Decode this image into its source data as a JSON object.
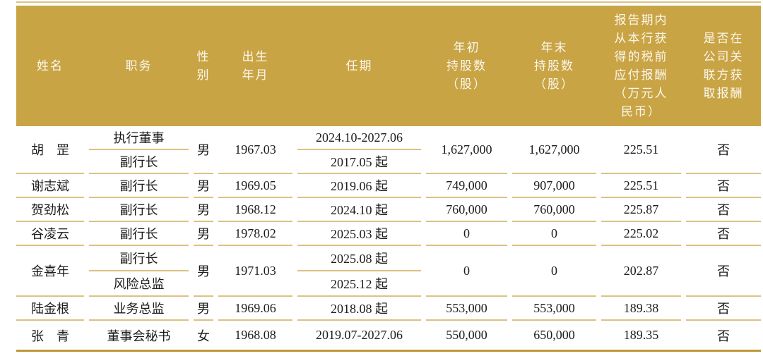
{
  "table": {
    "colors": {
      "header_bg": "#c9a445",
      "separator_line": "#dcc183",
      "bottom_border": "#bd9838",
      "header_text": "#fbf7ec",
      "body_text": "#1c1c1c"
    },
    "header": {
      "name": "姓名",
      "position": "职务",
      "gender": "性\n别",
      "birth": "出生\n年月",
      "term": "任期",
      "shares_start": "年初\n持股数\n（股）",
      "shares_end": "年末\n持股数\n（股）",
      "pay": "报告期内\n从本行获\n得的税前\n应付报酬\n（万元人\n民币）",
      "related": "是否在\n公司关\n联方获\n取报酬"
    },
    "rows": [
      {
        "name": "胡　罡",
        "positions": [
          "执行董事",
          "副行长"
        ],
        "gender": "男",
        "birth": "1967.03",
        "terms": [
          "2024.10-2027.06",
          "2017.05 起"
        ],
        "shares_start": "1,627,000",
        "shares_end": "1,627,000",
        "pay": "225.51",
        "related": "否"
      },
      {
        "name": "谢志斌",
        "positions": [
          "副行长"
        ],
        "gender": "男",
        "birth": "1969.05",
        "terms": [
          "2019.06 起"
        ],
        "shares_start": "749,000",
        "shares_end": "907,000",
        "pay": "225.51",
        "related": "否"
      },
      {
        "name": "贺劲松",
        "positions": [
          "副行长"
        ],
        "gender": "男",
        "birth": "1968.12",
        "terms": [
          "2024.10 起"
        ],
        "shares_start": "760,000",
        "shares_end": "760,000",
        "pay": "225.87",
        "related": "否"
      },
      {
        "name": "谷凌云",
        "positions": [
          "副行长"
        ],
        "gender": "男",
        "birth": "1978.02",
        "terms": [
          "2025.03 起"
        ],
        "shares_start": "0",
        "shares_end": "0",
        "pay": "225.02",
        "related": "否"
      },
      {
        "name": "金喜年",
        "positions": [
          "副行长",
          "风险总监"
        ],
        "gender": "男",
        "birth": "1971.03",
        "terms": [
          "2025.08 起",
          "2025.12 起"
        ],
        "shares_start": "0",
        "shares_end": "0",
        "pay": "202.87",
        "related": "否"
      },
      {
        "name": "陆金根",
        "positions": [
          "业务总监"
        ],
        "gender": "男",
        "birth": "1969.06",
        "terms": [
          "2018.08 起"
        ],
        "shares_start": "553,000",
        "shares_end": "553,000",
        "pay": "189.38",
        "related": "否"
      },
      {
        "name": "张　青",
        "positions": [
          "董事会秘书"
        ],
        "gender": "女",
        "birth": "1968.08",
        "terms": [
          "2019.07-2027.06"
        ],
        "shares_start": "550,000",
        "shares_end": "650,000",
        "pay": "189.35",
        "related": "否"
      }
    ]
  }
}
